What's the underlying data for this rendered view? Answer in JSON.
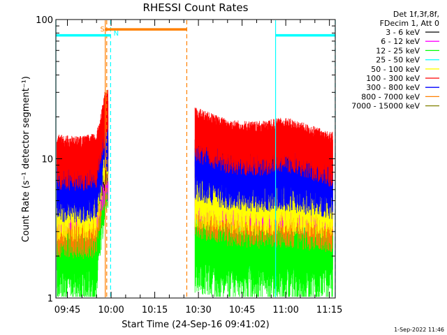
{
  "chart_data": {
    "type": "line",
    "title": "RHESSI Count Rates",
    "xlabel": "Start Time (24-Sep-16 09:41:02)",
    "ylabel": "Count Rate (s⁻¹ detector segment⁻¹)",
    "y_scale": "log",
    "ylim": [
      1,
      100
    ],
    "xlim": [
      "09:41:02",
      "11:17:00"
    ],
    "x_ticks": [
      "09:45",
      "10:00",
      "10:15",
      "10:30",
      "10:45",
      "11:00",
      "11:15"
    ],
    "y_ticks": [
      "1",
      "10",
      "100"
    ],
    "grid": false,
    "legend_position": "right",
    "legend_header": [
      "Det 1f,3f,8f,",
      "FDecim 1, Att 0"
    ],
    "data_gaps": [
      [
        "09:59:00",
        "10:28:30"
      ]
    ],
    "series": [
      {
        "name": "3 - 6 keV",
        "color": "#000000",
        "x": [
          "09:41",
          "09:50",
          "09:55",
          "09:58",
          "10:29",
          "10:40",
          "10:50",
          "11:00",
          "11:10",
          "11:15"
        ],
        "values": [
          7.5,
          7.3,
          7.6,
          11,
          10.5,
          9.0,
          8.2,
          8.0,
          7.8,
          7.6
        ]
      },
      {
        "name": "6 - 12 keV",
        "color": "#ff00ff",
        "x": [
          "09:41",
          "09:50",
          "09:55",
          "09:58",
          "10:29",
          "10:40",
          "10:50",
          "11:00",
          "11:05",
          "11:10",
          "11:15"
        ],
        "values": [
          5.6,
          5.5,
          5.8,
          9,
          6.8,
          6.3,
          6.1,
          6.0,
          6.3,
          6.1,
          5.9
        ]
      },
      {
        "name": "12 - 25 keV",
        "color": "#00ff00",
        "x": [
          "09:41",
          "09:50",
          "09:55",
          "09:58",
          "10:29",
          "10:40",
          "10:50",
          "11:00",
          "11:10",
          "11:15"
        ],
        "values": [
          2.2,
          2.1,
          2.2,
          10,
          2.6,
          2.3,
          2.2,
          2.2,
          2.1,
          2.2
        ]
      },
      {
        "name": "25 - 50 keV",
        "color": "#00ffff",
        "x": [
          "09:41",
          "09:50",
          "09:55",
          "09:58",
          "10:29",
          "10:40",
          "10:50",
          "11:00",
          "11:10",
          "11:15"
        ],
        "values": [
          3.2,
          3.1,
          3.2,
          12,
          3.8,
          3.3,
          3.2,
          3.2,
          3.0,
          3.1
        ]
      },
      {
        "name": "50 - 100 keV",
        "color": "#ffff00",
        "x": [
          "09:41",
          "09:50",
          "09:55",
          "09:58",
          "10:29",
          "10:40",
          "10:50",
          "11:00",
          "11:10",
          "11:15"
        ],
        "values": [
          5.0,
          4.9,
          5.2,
          13,
          6.2,
          5.6,
          5.4,
          5.5,
          5.3,
          5.2
        ]
      },
      {
        "name": "100 - 300 keV",
        "color": "#ff0000",
        "x": [
          "09:41",
          "09:50",
          "09:55",
          "09:58",
          "10:29",
          "10:40",
          "10:50",
          "11:00",
          "11:10",
          "11:15"
        ],
        "values": [
          10.5,
          10.2,
          10.8,
          22,
          16.5,
          13.5,
          13.0,
          14.0,
          12.0,
          11.0
        ]
      },
      {
        "name": "300 - 800 keV",
        "color": "#0000ff",
        "x": [
          "09:41",
          "09:50",
          "09:55",
          "09:58",
          "10:29",
          "10:40",
          "10:50",
          "11:00",
          "11:10",
          "11:15"
        ],
        "values": [
          6.5,
          6.4,
          6.7,
          15,
          9.3,
          8.0,
          7.7,
          7.8,
          7.2,
          6.8
        ]
      },
      {
        "name": "800 - 7000 keV",
        "color": "#ff8000",
        "x": [
          "09:41",
          "09:50",
          "09:55",
          "09:58",
          "10:29",
          "10:40",
          "10:50",
          "11:00",
          "11:10",
          "11:15"
        ],
        "values": [
          4.0,
          3.9,
          4.0,
          11,
          5.5,
          4.8,
          4.6,
          4.7,
          4.4,
          4.3
        ]
      },
      {
        "name": "7000 - 15000 keV",
        "color": "#808000",
        "x": [],
        "values": []
      }
    ],
    "annotations": [
      {
        "label": "S",
        "color": "#ff8000",
        "x": "09:58:00"
      },
      {
        "label": "N",
        "color": "#00ffff",
        "x": "09:59:50"
      }
    ],
    "flag_bars": [
      {
        "color": "#ff8000",
        "start": "09:58:00",
        "end": "10:26:00",
        "level": 85
      },
      {
        "color": "#00ffff",
        "start": "09:41:02",
        "end": "09:59:50",
        "level": 77
      },
      {
        "color": "#00ffff",
        "start": "10:56:30",
        "end": "11:17:00",
        "level": 77
      }
    ],
    "marker_lines": [
      {
        "color": "#00ffff",
        "x": "09:41:02",
        "style": "solid"
      },
      {
        "color": "#ff8000",
        "x": "09:58:00",
        "style": "solid"
      },
      {
        "color": "#ff8000",
        "x": "09:58:30",
        "style": "dashed"
      },
      {
        "color": "#00ffff",
        "x": "09:59:50",
        "style": "dashed"
      },
      {
        "color": "#ff8000",
        "x": "10:26:00",
        "style": "dashed"
      },
      {
        "color": "#00ffff",
        "x": "10:56:30",
        "style": "solid"
      },
      {
        "color": "#00ffff",
        "x": "11:17:00",
        "style": "dashed"
      }
    ]
  },
  "footer_date": "1-Sep-2022 11:46"
}
